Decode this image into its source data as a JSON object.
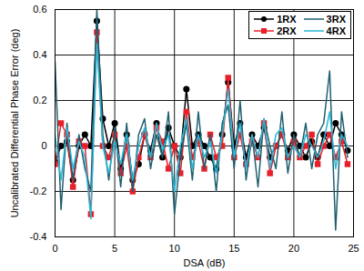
{
  "chart_data": {
    "type": "line",
    "x_label": "DSA (dB)",
    "y_label": "Uncalibrated Differential Phase Error (deg)",
    "x": [
      0,
      0.5,
      1,
      1.5,
      2,
      2.5,
      3,
      3.5,
      4,
      4.5,
      5,
      5.5,
      6,
      6.5,
      7,
      7.5,
      8,
      8.5,
      9,
      9.5,
      10,
      10.5,
      11,
      11.5,
      12,
      12.5,
      13,
      13.5,
      14,
      14.5,
      15,
      15.5,
      16,
      16.5,
      17,
      17.5,
      18,
      18.5,
      19,
      19.5,
      20,
      20.5,
      21,
      21.5,
      22,
      22.5,
      23,
      23.5,
      24,
      24.5
    ],
    "series": [
      {
        "name": "1RX",
        "color": "#000000",
        "marker": "circle",
        "values": [
          -0.07,
          0.0,
          0.02,
          -0.15,
          0.0,
          0.05,
          0.0,
          0.55,
          0.12,
          0.0,
          0.1,
          -0.1,
          0.05,
          -0.15,
          -0.08,
          0.05,
          -0.02,
          0.1,
          -0.05,
          0.08,
          0.0,
          -0.05,
          0.25,
          0.0,
          0.05,
          0.0,
          -0.05,
          -0.1,
          0.05,
          0.28,
          0.0,
          0.1,
          -0.05,
          0.05,
          0.0,
          0.08,
          -0.05,
          0.0,
          0.05,
          -0.02,
          0.05,
          0.0,
          -0.05,
          0.02,
          -0.05,
          0.05,
          0.0,
          0.1,
          0.05,
          -0.02
        ]
      },
      {
        "name": "2RX",
        "color": "#e8202a",
        "marker": "square",
        "values": [
          -0.08,
          0.1,
          0.05,
          -0.18,
          0.02,
          0.0,
          -0.3,
          0.5,
          0.0,
          -0.05,
          0.05,
          -0.12,
          0.0,
          -0.2,
          -0.05,
          0.05,
          -0.05,
          0.08,
          0.02,
          -0.1,
          0.0,
          -0.12,
          0.15,
          -0.05,
          0.02,
          -0.1,
          0.05,
          -0.05,
          0.0,
          0.3,
          -0.05,
          0.05,
          -0.08,
          0.02,
          -0.05,
          0.1,
          -0.12,
          0.0,
          0.05,
          -0.05,
          0.02,
          -0.05,
          0.0,
          0.05,
          -0.08,
          0.0,
          0.05,
          -0.05,
          0.02,
          -0.08
        ]
      },
      {
        "name": "3RX",
        "color": "#1f5f6f",
        "marker": "none",
        "values": [
          0.37,
          -0.28,
          0.1,
          -0.15,
          0.05,
          -0.1,
          -0.2,
          0.6,
          0.05,
          -0.15,
          0.08,
          -0.18,
          0.1,
          -0.2,
          0.05,
          0.12,
          -0.1,
          0.05,
          -0.05,
          0.15,
          -0.3,
          -0.05,
          0.1,
          -0.15,
          0.15,
          -0.1,
          0.05,
          -0.2,
          0.1,
          0.18,
          -0.1,
          0.2,
          -0.15,
          0.05,
          -0.18,
          0.12,
          0.0,
          -0.1,
          0.15,
          -0.12,
          0.05,
          -0.05,
          0.1,
          -0.1,
          0.05,
          0.1,
          0.33,
          -0.37,
          0.15,
          -0.05
        ]
      },
      {
        "name": "4RX",
        "color": "#2ab7d6",
        "marker": "none",
        "values": [
          0.05,
          -0.15,
          0.08,
          -0.1,
          0.02,
          -0.05,
          -0.32,
          0.45,
          0.0,
          -0.12,
          0.02,
          -0.08,
          0.05,
          -0.15,
          0.0,
          0.08,
          -0.05,
          0.1,
          -0.02,
          0.05,
          -0.2,
          0.0,
          0.12,
          -0.1,
          0.05,
          -0.05,
          0.02,
          -0.12,
          0.05,
          0.25,
          -0.05,
          0.1,
          -0.1,
          0.05,
          -0.05,
          0.12,
          -0.1,
          0.05,
          0.08,
          -0.05,
          0.0,
          -0.05,
          0.05,
          0.0,
          -0.05,
          0.02,
          0.15,
          -0.1,
          0.05,
          0.0
        ]
      }
    ],
    "xlim": [
      0,
      25
    ],
    "xticks": [
      0,
      5,
      10,
      15,
      20,
      25
    ],
    "ylim": [
      -0.4,
      0.6
    ],
    "yticks": [
      -0.4,
      -0.2,
      0,
      0.2,
      0.4,
      0.6
    ],
    "grid": true,
    "legend": "top-right"
  }
}
